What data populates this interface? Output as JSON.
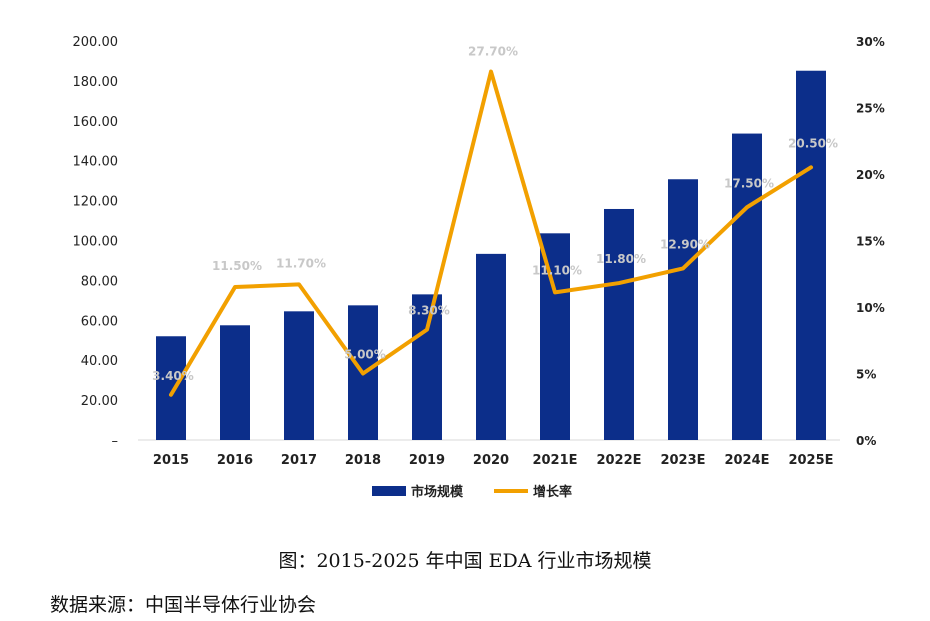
{
  "chart_data": {
    "type": "bar+line",
    "categories": [
      "2015",
      "2016",
      "2017",
      "2018",
      "2019",
      "2020",
      "2021E",
      "2022E",
      "2023E",
      "2024E",
      "2025E"
    ],
    "series": [
      {
        "name": "市场规模",
        "type": "bar",
        "axis": "left",
        "values": [
          52,
          57.5,
          64.5,
          67.5,
          73,
          93.3,
          103.6,
          115.8,
          130.7,
          153.6,
          185.1
        ]
      },
      {
        "name": "增长率",
        "type": "line",
        "axis": "right",
        "values": [
          3.4,
          11.5,
          11.7,
          5.0,
          8.3,
          27.7,
          11.1,
          11.8,
          12.9,
          17.5,
          20.5
        ],
        "labels": [
          "3.40%",
          "11.50%",
          "11.70%",
          "5.00%",
          "8.30%",
          "27.70%",
          "11.10%",
          "11.80%",
          "12.90%",
          "17.50%",
          "20.50%"
        ]
      }
    ],
    "y_left": {
      "min": 0,
      "max": 200,
      "ticks": [
        "–",
        "20.00",
        "40.00",
        "60.00",
        "80.00",
        "100.00",
        "120.00",
        "140.00",
        "160.00",
        "180.00",
        "200.00"
      ]
    },
    "y_right": {
      "min": 0,
      "max": 30,
      "ticks": [
        "0%",
        "5%",
        "10%",
        "15%",
        "20%",
        "25%",
        "30%"
      ]
    },
    "legend": {
      "position": "bottom"
    }
  },
  "colors": {
    "bar": "#0c2e8a",
    "line": "#f2a000",
    "label": "#c8c8c8"
  },
  "caption": "图：2015-2025 年中国 EDA 行业市场规模",
  "source": "数据来源：中国半导体行业协会"
}
